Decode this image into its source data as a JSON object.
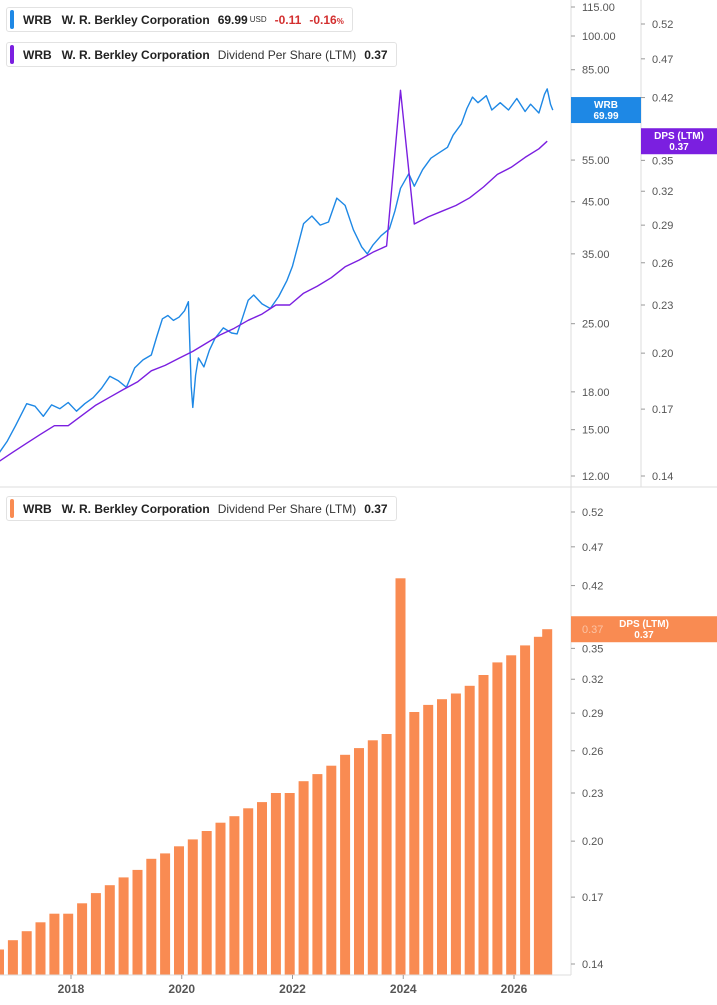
{
  "colors": {
    "price": "#1e88e5",
    "dps_line": "#7b1fe0",
    "dps_bar": "#f98b52",
    "negative": "#d32f2f",
    "axis_text": "#555555",
    "divider": "#dddddd"
  },
  "legends": {
    "price": {
      "ticker": "WRB",
      "company": "W. R. Berkley Corporation",
      "value": "69.99",
      "currency": "USD",
      "change": "-0.11",
      "change_pct": "-0.16",
      "pct_sign": "%"
    },
    "dps_top": {
      "ticker": "WRB",
      "company": "W. R. Berkley Corporation",
      "metric": "Dividend Per Share (LTM)",
      "value": "0.37"
    },
    "dps_bottom": {
      "ticker": "WRB",
      "company": "W. R. Berkley Corporation",
      "metric": "Dividend Per Share (LTM)",
      "value": "0.37"
    }
  },
  "badges": {
    "price": {
      "line1": "WRB",
      "line2": "69.99"
    },
    "dps_top": {
      "line1": "DPS (LTM)",
      "line2": "0.37"
    },
    "dps_bottom": {
      "line1": "DPS (LTM)",
      "line2": "0.37"
    },
    "dps_bottom_hidden_tick": "0.37"
  },
  "chart_data": [
    {
      "type": "line",
      "title": "",
      "scale": "log",
      "series": [
        {
          "name": "WRB",
          "axis": "price",
          "points": [
            [
              2016.7,
              13.4
            ],
            [
              2016.85,
              14.2
            ],
            [
              2017.0,
              15.3
            ],
            [
              2017.2,
              17.0
            ],
            [
              2017.35,
              16.8
            ],
            [
              2017.5,
              16.0
            ],
            [
              2017.65,
              16.9
            ],
            [
              2017.8,
              16.6
            ],
            [
              2017.95,
              17.1
            ],
            [
              2018.1,
              16.4
            ],
            [
              2018.25,
              17.0
            ],
            [
              2018.4,
              17.5
            ],
            [
              2018.55,
              18.3
            ],
            [
              2018.7,
              19.4
            ],
            [
              2018.85,
              19.0
            ],
            [
              2019.0,
              18.4
            ],
            [
              2019.15,
              20.2
            ],
            [
              2019.3,
              21.0
            ],
            [
              2019.45,
              21.5
            ],
            [
              2019.55,
              23.5
            ],
            [
              2019.65,
              25.6
            ],
            [
              2019.75,
              26.0
            ],
            [
              2019.85,
              25.4
            ],
            [
              2019.95,
              25.8
            ],
            [
              2020.05,
              26.6
            ],
            [
              2020.12,
              27.8
            ],
            [
              2020.17,
              18.5
            ],
            [
              2020.2,
              16.7
            ],
            [
              2020.25,
              19.5
            ],
            [
              2020.3,
              21.2
            ],
            [
              2020.4,
              20.3
            ],
            [
              2020.5,
              22.0
            ],
            [
              2020.6,
              23.3
            ],
            [
              2020.75,
              24.5
            ],
            [
              2020.9,
              23.9
            ],
            [
              2021.0,
              23.8
            ],
            [
              2021.1,
              25.8
            ],
            [
              2021.2,
              28.0
            ],
            [
              2021.3,
              28.7
            ],
            [
              2021.45,
              27.5
            ],
            [
              2021.6,
              26.9
            ],
            [
              2021.75,
              28.5
            ],
            [
              2021.9,
              30.8
            ],
            [
              2022.0,
              33.0
            ],
            [
              2022.1,
              36.5
            ],
            [
              2022.2,
              40.5
            ],
            [
              2022.35,
              42.0
            ],
            [
              2022.5,
              40.2
            ],
            [
              2022.65,
              40.8
            ],
            [
              2022.8,
              45.8
            ],
            [
              2022.95,
              44.2
            ],
            [
              2023.1,
              39.3
            ],
            [
              2023.25,
              36.2
            ],
            [
              2023.35,
              35.0
            ],
            [
              2023.45,
              36.5
            ],
            [
              2023.6,
              38.2
            ],
            [
              2023.75,
              39.5
            ],
            [
              2023.85,
              43.0
            ],
            [
              2023.95,
              48.0
            ],
            [
              2024.1,
              51.5
            ],
            [
              2024.2,
              48.5
            ],
            [
              2024.35,
              52.5
            ],
            [
              2024.5,
              55.5
            ],
            [
              2024.65,
              57.0
            ],
            [
              2024.8,
              58.5
            ],
            [
              2024.9,
              62.0
            ],
            [
              2025.05,
              65.5
            ],
            [
              2025.15,
              70.5
            ],
            [
              2025.25,
              74.5
            ],
            [
              2025.35,
              72.5
            ],
            [
              2025.5,
              75.0
            ],
            [
              2025.6,
              70.0
            ],
            [
              2025.75,
              72.5
            ],
            [
              2025.9,
              70.0
            ],
            [
              2026.05,
              74.0
            ],
            [
              2026.2,
              69.5
            ],
            [
              2026.3,
              72.0
            ],
            [
              2026.45,
              69.0
            ],
            [
              2026.55,
              75.5
            ],
            [
              2026.6,
              77.5
            ],
            [
              2026.66,
              72.0
            ],
            [
              2026.7,
              69.99
            ]
          ]
        },
        {
          "name": "Dividend Per Share (LTM)",
          "axis": "dps",
          "points": [
            [
              2016.7,
              0.146
            ],
            [
              2016.95,
              0.15
            ],
            [
              2017.2,
              0.154
            ],
            [
              2017.45,
              0.158
            ],
            [
              2017.7,
              0.162
            ],
            [
              2017.95,
              0.162
            ],
            [
              2018.2,
              0.167
            ],
            [
              2018.45,
              0.172
            ],
            [
              2018.7,
              0.176
            ],
            [
              2018.95,
              0.18
            ],
            [
              2019.2,
              0.184
            ],
            [
              2019.45,
              0.19
            ],
            [
              2019.7,
              0.193
            ],
            [
              2019.95,
              0.197
            ],
            [
              2020.2,
              0.201
            ],
            [
              2020.45,
              0.206
            ],
            [
              2020.7,
              0.211
            ],
            [
              2020.95,
              0.215
            ],
            [
              2021.2,
              0.22
            ],
            [
              2021.45,
              0.224
            ],
            [
              2021.7,
              0.23
            ],
            [
              2021.95,
              0.23
            ],
            [
              2022.2,
              0.238
            ],
            [
              2022.45,
              0.243
            ],
            [
              2022.7,
              0.249
            ],
            [
              2022.95,
              0.257
            ],
            [
              2023.2,
              0.262
            ],
            [
              2023.45,
              0.268
            ],
            [
              2023.7,
              0.273
            ],
            [
              2023.95,
              0.429
            ],
            [
              2024.2,
              0.291
            ],
            [
              2024.45,
              0.297
            ],
            [
              2024.7,
              0.302
            ],
            [
              2024.95,
              0.307
            ],
            [
              2025.2,
              0.314
            ],
            [
              2025.45,
              0.324
            ],
            [
              2025.7,
              0.336
            ],
            [
              2025.95,
              0.343
            ],
            [
              2026.2,
              0.353
            ],
            [
              2026.45,
              0.362
            ],
            [
              2026.6,
              0.37
            ]
          ]
        }
      ],
      "price_axis": {
        "ticks": [
          "12.00",
          "15.00",
          "18.00",
          "25.00",
          "35.00",
          "45.00",
          "55.00",
          "85.00",
          "100.00",
          "115.00"
        ],
        "range": [
          11.5,
          118
        ]
      },
      "dps_axis": {
        "ticks": [
          "0.14",
          "0.17",
          "0.20",
          "0.23",
          "0.26",
          "0.29",
          "0.32",
          "0.35",
          "0.42",
          "0.47",
          "0.52"
        ],
        "range": [
          0.137,
          0.545
        ]
      }
    },
    {
      "type": "bar",
      "title": "",
      "scale": "log",
      "series": [
        {
          "name": "Dividend Per Share (LTM)",
          "x": [
            2016.7,
            2016.95,
            2017.2,
            2017.45,
            2017.7,
            2017.95,
            2018.2,
            2018.45,
            2018.7,
            2018.95,
            2019.2,
            2019.45,
            2019.7,
            2019.95,
            2020.2,
            2020.45,
            2020.7,
            2020.95,
            2021.2,
            2021.45,
            2021.7,
            2021.95,
            2022.2,
            2022.45,
            2022.7,
            2022.95,
            2023.2,
            2023.45,
            2023.7,
            2023.95,
            2024.2,
            2024.45,
            2024.7,
            2024.95,
            2025.2,
            2025.45,
            2025.7,
            2025.95,
            2026.2,
            2026.45,
            2026.6
          ],
          "values": [
            0.146,
            0.15,
            0.154,
            0.158,
            0.162,
            0.162,
            0.167,
            0.172,
            0.176,
            0.18,
            0.184,
            0.19,
            0.193,
            0.197,
            0.201,
            0.206,
            0.211,
            0.215,
            0.22,
            0.224,
            0.23,
            0.23,
            0.238,
            0.243,
            0.249,
            0.257,
            0.262,
            0.268,
            0.273,
            0.429,
            0.291,
            0.297,
            0.302,
            0.307,
            0.314,
            0.324,
            0.336,
            0.343,
            0.353,
            0.362,
            0.37
          ]
        }
      ],
      "y_axis": {
        "ticks": [
          "0.14",
          "0.17",
          "0.20",
          "0.23",
          "0.26",
          "0.29",
          "0.32",
          "0.35",
          "0.42",
          "0.47",
          "0.52"
        ],
        "range": [
          0.137,
          0.545
        ]
      },
      "x_axis": {
        "ticks": [
          "2018",
          "2020",
          "2022",
          "2024",
          "2026"
        ]
      }
    }
  ]
}
